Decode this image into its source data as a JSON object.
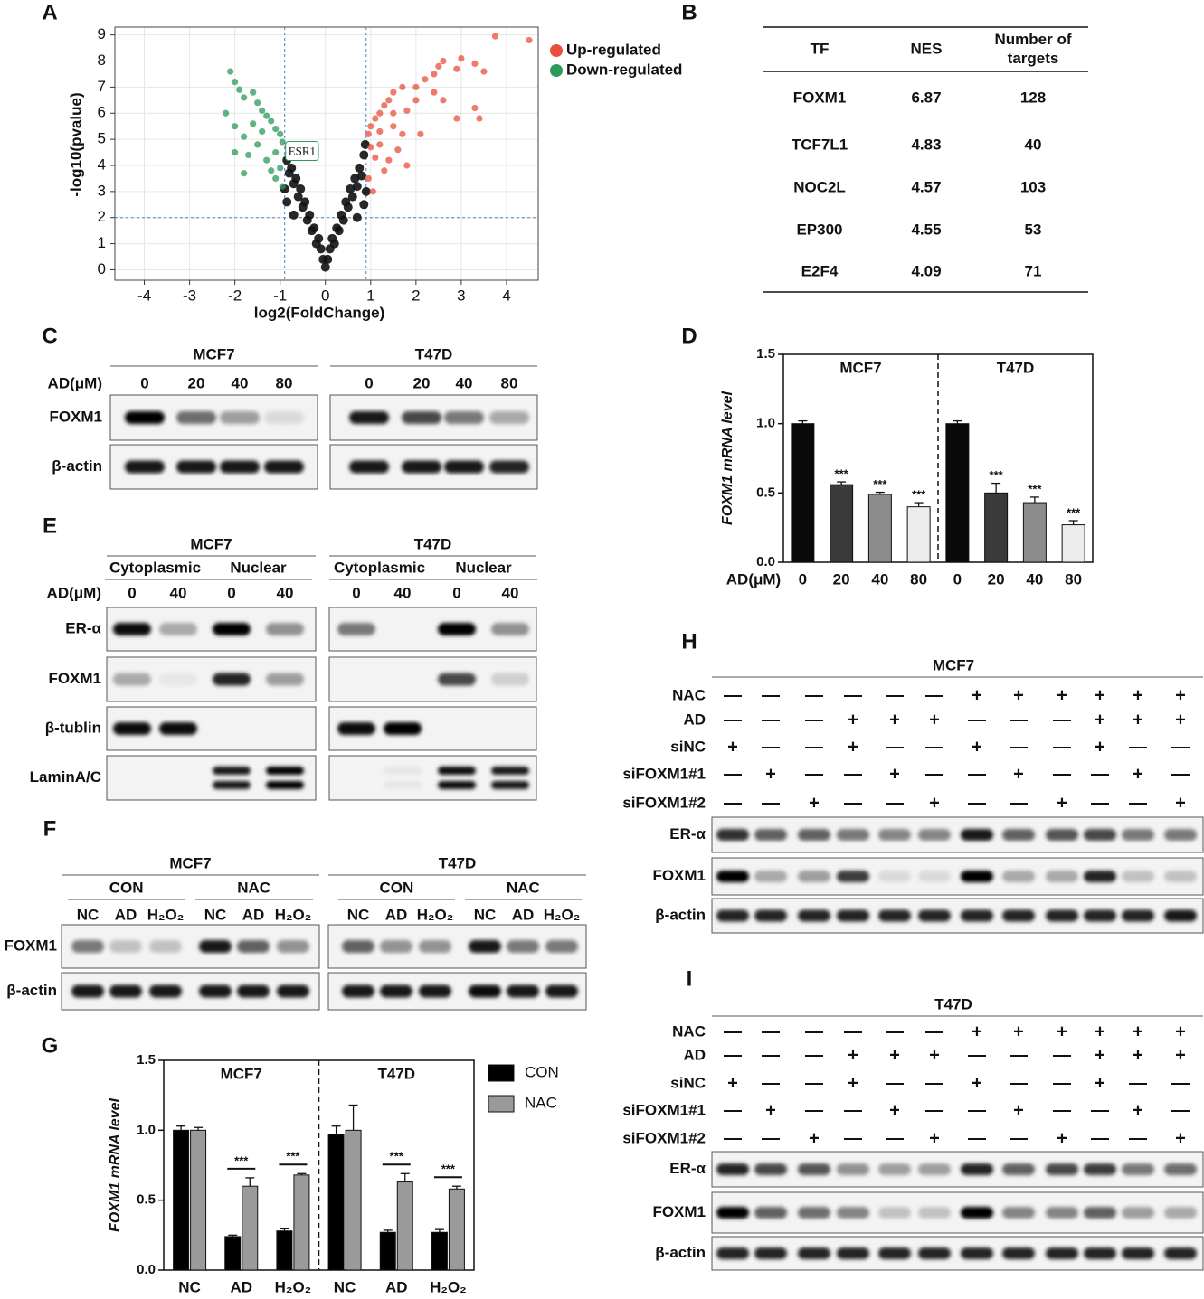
{
  "panel_labels": [
    "A",
    "B",
    "C",
    "D",
    "E",
    "F",
    "G",
    "H",
    "I"
  ],
  "chart_data": [
    {
      "type": "scatter",
      "xlabel": "log2(FoldChange)",
      "ylabel": "-log10(pvalue)",
      "xlim": [
        -4.65,
        4.7
      ],
      "ylim": [
        -0.4,
        9.3
      ],
      "xticks": [
        -4,
        -3,
        -2,
        -1,
        0,
        1,
        2,
        3,
        4
      ],
      "yticks": [
        0,
        1,
        2,
        3,
        4,
        5,
        6,
        7,
        8,
        9
      ],
      "grid": true,
      "legend": "right",
      "thresholds": {
        "x": [
          -0.9,
          0.9
        ],
        "y": 2
      },
      "series": [
        {
          "name": "Up-regulated",
          "color": "#e8503c",
          "x": [
            0.95,
            1,
            1.1,
            1.2,
            1.3,
            1.4,
            1.5,
            1.7,
            2,
            2.2,
            2.4,
            2.5,
            2.6,
            2.9,
            3,
            3.3,
            3.5,
            3.75,
            4.5,
            3.3,
            3.4,
            2.9,
            2.6,
            2,
            1.8,
            1.5,
            1.2,
            1.1,
            1.3,
            1.6,
            1.8,
            2.1,
            1.5,
            1.2,
            1,
            0.95,
            1.05,
            2.4,
            1.7,
            1.4
          ],
          "y": [
            5.2,
            5.5,
            5.8,
            6,
            6.3,
            6.5,
            6.8,
            7,
            7,
            7.3,
            7.5,
            7.8,
            8,
            7.7,
            8.1,
            7.9,
            7.6,
            8.95,
            8.8,
            6.2,
            5.8,
            5.8,
            6.5,
            6.5,
            6.1,
            5.5,
            4.8,
            4.3,
            3.8,
            4.6,
            4,
            5.2,
            6,
            5.3,
            4.7,
            3.5,
            3,
            6.8,
            5.2,
            4.2
          ]
        },
        {
          "name": "Down-regulated",
          "color": "#2e9a5a",
          "x": [
            -2.1,
            -2,
            -1.9,
            -1.8,
            -1.6,
            -1.5,
            -1.4,
            -1.3,
            -1.2,
            -1.1,
            -1,
            -0.95,
            -2.2,
            -2,
            -1.8,
            -1.7,
            -1.5,
            -1.3,
            -1.2,
            -1.1,
            -0.95,
            -1.6,
            -1.4,
            -2,
            -1.8,
            -1.1,
            -1
          ],
          "y": [
            7.6,
            7.2,
            6.9,
            6.6,
            6.8,
            6.4,
            6.1,
            5.9,
            5.7,
            5.4,
            5.2,
            4.9,
            6,
            5.5,
            5.1,
            4.4,
            4.8,
            4.2,
            3.8,
            3.5,
            3.2,
            5.6,
            5.3,
            4.5,
            3.7,
            4.5,
            3.9
          ]
        },
        {
          "color": "#111111",
          "x": [
            0,
            0.05,
            -0.05,
            0.1,
            -0.1,
            0.15,
            -0.15,
            0.2,
            -0.2,
            0.25,
            -0.25,
            0.3,
            -0.3,
            0.35,
            -0.35,
            0.4,
            -0.4,
            0.45,
            -0.45,
            0.5,
            -0.5,
            0.55,
            -0.55,
            0.6,
            -0.6,
            0.65,
            -0.65,
            0.7,
            -0.7,
            0.75,
            -0.75,
            0.8,
            -0.8,
            0.85,
            -0.85,
            0.85,
            -0.85,
            0.9,
            -0.9,
            0.88,
            -0.7,
            0.7,
            -0.7
          ],
          "y": [
            0.1,
            0.4,
            0.4,
            0.8,
            0.8,
            1.2,
            1.2,
            1,
            1,
            1.6,
            1.6,
            1.5,
            1.5,
            2.1,
            2.1,
            1.9,
            1.9,
            2.6,
            2.6,
            2.4,
            2.4,
            3.1,
            3.1,
            2.8,
            2.8,
            3.5,
            3.5,
            3.2,
            3.3,
            3.9,
            3.9,
            3.6,
            3.7,
            4.4,
            4.2,
            2.5,
            2.6,
            3,
            3.1,
            4.8,
            4.6,
            2,
            2.1
          ]
        }
      ],
      "annotations": [
        {
          "text": "ESR1",
          "x": -0.9,
          "y": 4.5,
          "color": "#2e9a5a"
        }
      ]
    },
    {
      "type": "bar",
      "ylabel": "FOXM1 mRNA level",
      "xlabel": "AD(μM)",
      "ylim": [
        0,
        1.5
      ],
      "yticks": [
        {
          "value": 0,
          "label": "0.0"
        },
        {
          "value": 0.5,
          "label": "0.5"
        },
        {
          "value": 1,
          "label": "1.0"
        },
        {
          "value": 1.5,
          "label": "1.5"
        }
      ],
      "groups": [
        "MCF7",
        "T47D"
      ],
      "categories": [
        "0",
        "20",
        "40",
        "80",
        "0",
        "20",
        "40",
        "80"
      ],
      "values": [
        1.0,
        0.56,
        0.49,
        0.4,
        1.0,
        0.5,
        0.43,
        0.27
      ],
      "errors": [
        0.02,
        0.02,
        0.015,
        0.03,
        0.02,
        0.07,
        0.04,
        0.03
      ],
      "annotations": [
        null,
        "***",
        "***",
        "***",
        null,
        "***",
        "***",
        "***"
      ],
      "colors": [
        "#0a0a0a",
        "#3a3a3a",
        "#8c8c8c",
        "#ededed"
      ]
    },
    {
      "type": "grouped_bar",
      "ylabel": "FOXM1 mRNA level",
      "ylim": [
        0,
        1.5
      ],
      "yticks": [
        {
          "value": 0,
          "label": "0.0"
        },
        {
          "value": 0.5,
          "label": "0.5"
        },
        {
          "value": 1,
          "label": "1.0"
        },
        {
          "value": 1.5,
          "label": "1.5"
        }
      ],
      "groups": [
        "MCF7",
        "T47D"
      ],
      "categories": [
        "NC",
        "AD",
        "H₂O₂",
        "NC",
        "AD",
        "H₂O₂"
      ],
      "legend": "right",
      "series": [
        {
          "name": "CON",
          "color": "#000000",
          "values": [
            1.0,
            0.24,
            0.28,
            0.97,
            0.27,
            0.27
          ],
          "errors": [
            0.03,
            0.01,
            0.015,
            0.06,
            0.015,
            0.02
          ]
        },
        {
          "name": "NAC",
          "color": "#9a9a9a",
          "values": [
            1.0,
            0.6,
            0.68,
            1.0,
            0.63,
            0.58
          ],
          "errors": [
            0.02,
            0.06,
            0.01,
            0.18,
            0.06,
            0.02
          ]
        }
      ],
      "annotations": [
        null,
        "***",
        "***",
        null,
        "***",
        "***"
      ]
    }
  ],
  "table": {
    "columns": [
      "TF",
      "NES",
      "Number of targets"
    ],
    "rows": [
      [
        "FOXM1",
        6.87,
        128
      ],
      [
        "TCF7L1",
        4.83,
        40
      ],
      [
        "NOC2L",
        4.57,
        103
      ],
      [
        "EP300",
        4.55,
        53
      ],
      [
        "E2F4",
        4.09,
        71
      ]
    ]
  },
  "blots": {
    "C": {
      "lane_label": "AD(μM)",
      "rows": [
        "FOXM1",
        "β-actin"
      ],
      "cell_lines": [
        {
          "name": "MCF7",
          "lanes": [
            "0",
            "20",
            "40",
            "80"
          ],
          "bands": [
            [
              1,
              0.55,
              0.35,
              0.1
            ],
            [
              0.9,
              0.9,
              0.9,
              0.9
            ]
          ]
        },
        {
          "name": "T47D",
          "lanes": [
            "0",
            "20",
            "40",
            "80"
          ],
          "bands": [
            [
              0.9,
              0.7,
              0.5,
              0.3
            ],
            [
              0.9,
              0.9,
              0.9,
              0.85
            ]
          ]
        }
      ]
    },
    "E": {
      "lane_label": "AD(μM)",
      "rows": [
        "ER-α",
        "FOXM1",
        "β-tublin",
        "LaminA/C"
      ],
      "double": [
        false,
        false,
        false,
        true
      ],
      "cell_lines": [
        {
          "name": "MCF7",
          "subgroups": [
            "Cytoplasmic",
            "Nuclear"
          ],
          "lanes": [
            "0",
            "40",
            "0",
            "40"
          ],
          "bands": [
            [
              0.95,
              0.3,
              1,
              0.4
            ],
            [
              0.3,
              0.05,
              0.85,
              0.35
            ],
            [
              0.95,
              0.95,
              0,
              0
            ],
            [
              0,
              0,
              0.9,
              1
            ]
          ]
        },
        {
          "name": "T47D",
          "subgroups": [
            "Cytoplasmic",
            "Nuclear"
          ],
          "lanes": [
            "0",
            "40",
            "0",
            "40"
          ],
          "bands": [
            [
              0.5,
              0,
              1,
              0.4
            ],
            [
              0,
              0,
              0.7,
              0.15
            ],
            [
              0.95,
              1,
              0,
              0
            ],
            [
              0,
              0.05,
              0.95,
              0.9
            ]
          ]
        }
      ]
    },
    "F": {
      "rows": [
        "FOXM1",
        "β-actin"
      ],
      "cell_lines": [
        {
          "name": "MCF7",
          "subgroups": [
            "CON",
            "NAC"
          ],
          "lanes": [
            "NC",
            "AD",
            "H₂O₂",
            "NC",
            "AD",
            "H₂O₂"
          ],
          "bands": [
            [
              0.5,
              0.2,
              0.2,
              0.9,
              0.6,
              0.4
            ],
            [
              0.9,
              0.9,
              0.9,
              0.9,
              0.9,
              0.9
            ]
          ]
        },
        {
          "name": "T47D",
          "subgroups": [
            "CON",
            "NAC"
          ],
          "lanes": [
            "NC",
            "AD",
            "H₂O₂",
            "NC",
            "AD",
            "H₂O₂"
          ],
          "bands": [
            [
              0.6,
              0.4,
              0.4,
              0.9,
              0.5,
              0.5
            ],
            [
              0.9,
              0.9,
              0.9,
              0.95,
              0.9,
              0.9
            ]
          ]
        }
      ]
    },
    "H": {
      "title": "MCF7",
      "conditions": [
        {
          "name": "NAC",
          "signs": [
            "—",
            "—",
            "—",
            "—",
            "—",
            "—",
            "+",
            "+",
            "+",
            "+",
            "+",
            "+"
          ]
        },
        {
          "name": "AD",
          "signs": [
            "—",
            "—",
            "—",
            "+",
            "+",
            "+",
            "—",
            "—",
            "—",
            "+",
            "+",
            "+"
          ]
        },
        {
          "name": "siNC",
          "signs": [
            "+",
            "—",
            "—",
            "+",
            "—",
            "—",
            "+",
            "—",
            "—",
            "+",
            "—",
            "—"
          ]
        },
        {
          "name": "siFOXM1#1",
          "signs": [
            "—",
            "+",
            "—",
            "—",
            "+",
            "—",
            "—",
            "+",
            "—",
            "—",
            "+",
            "—"
          ]
        },
        {
          "name": "siFOXM1#2",
          "signs": [
            "—",
            "—",
            "+",
            "—",
            "—",
            "+",
            "—",
            "—",
            "+",
            "—",
            "—",
            "+"
          ]
        }
      ],
      "rows": [
        "ER-α",
        "FOXM1",
        "β-actin"
      ],
      "bands": [
        [
          0.8,
          0.6,
          0.6,
          0.5,
          0.45,
          0.45,
          0.9,
          0.6,
          0.65,
          0.7,
          0.5,
          0.5
        ],
        [
          1,
          0.3,
          0.35,
          0.75,
          0.1,
          0.1,
          1,
          0.3,
          0.3,
          0.85,
          0.2,
          0.2
        ],
        [
          0.85,
          0.85,
          0.85,
          0.85,
          0.85,
          0.85,
          0.85,
          0.85,
          0.85,
          0.85,
          0.85,
          0.9
        ]
      ]
    },
    "I": {
      "title": "T47D",
      "conditions": [
        {
          "name": "NAC",
          "signs": [
            "—",
            "—",
            "—",
            "—",
            "—",
            "—",
            "+",
            "+",
            "+",
            "+",
            "+",
            "+"
          ]
        },
        {
          "name": "AD",
          "signs": [
            "—",
            "—",
            "—",
            "+",
            "+",
            "+",
            "—",
            "—",
            "—",
            "+",
            "+",
            "+"
          ]
        },
        {
          "name": "siNC",
          "signs": [
            "+",
            "—",
            "—",
            "+",
            "—",
            "—",
            "+",
            "—",
            "—",
            "+",
            "—",
            "—"
          ]
        },
        {
          "name": "siFOXM1#1",
          "signs": [
            "—",
            "+",
            "—",
            "—",
            "+",
            "—",
            "—",
            "+",
            "—",
            "—",
            "+",
            "—"
          ]
        },
        {
          "name": "siFOXM1#2",
          "signs": [
            "—",
            "—",
            "+",
            "—",
            "—",
            "+",
            "—",
            "—",
            "+",
            "—",
            "—",
            "+"
          ]
        }
      ],
      "rows": [
        "ER-α",
        "FOXM1",
        "β-actin"
      ],
      "bands": [
        [
          0.85,
          0.7,
          0.65,
          0.4,
          0.35,
          0.35,
          0.85,
          0.6,
          0.7,
          0.75,
          0.5,
          0.55
        ],
        [
          1,
          0.6,
          0.55,
          0.45,
          0.2,
          0.2,
          1,
          0.45,
          0.45,
          0.6,
          0.35,
          0.3
        ],
        [
          0.85,
          0.85,
          0.85,
          0.85,
          0.85,
          0.85,
          0.85,
          0.85,
          0.85,
          0.85,
          0.85,
          0.85
        ]
      ]
    }
  }
}
